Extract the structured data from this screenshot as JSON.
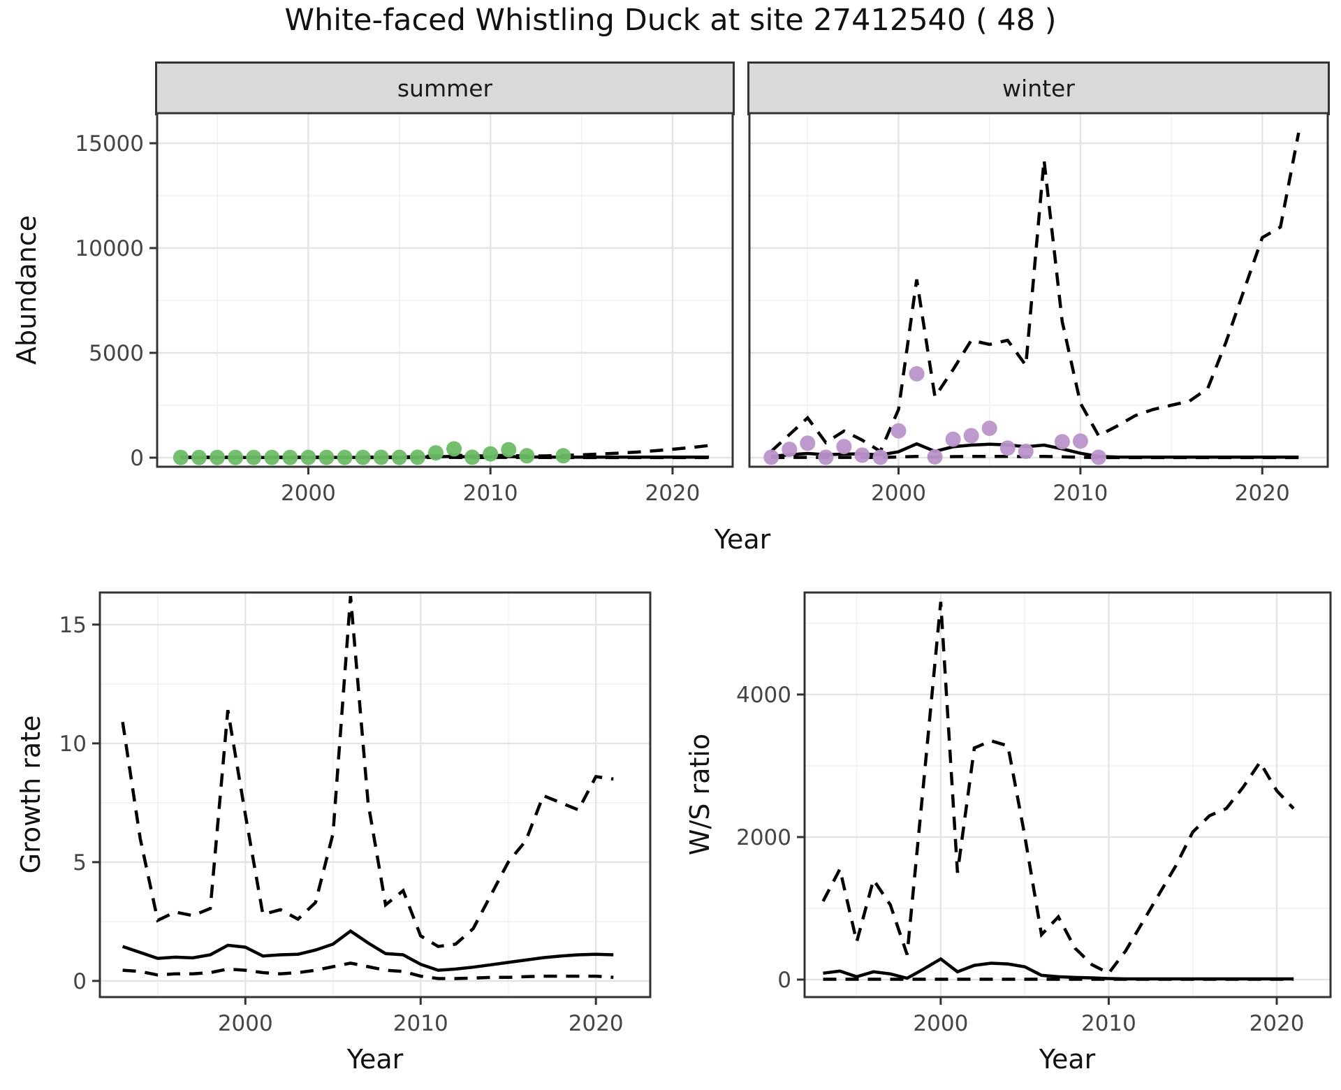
{
  "title": "White-faced Whistling Duck at site 27412540 ( 48 )",
  "colors": {
    "summer_points": "#6abd63",
    "winter_points": "#bb93cb",
    "line": "#000000",
    "strip_background": "#d9d9d9",
    "panel_border": "#333333",
    "grid_major": "#e4e4e4",
    "grid_minor": "#f2f2f2",
    "tick_text": "#444444"
  },
  "top_figure": {
    "ylabel": "Abundance",
    "xlabel": "Year",
    "facets": [
      "summer",
      "winter"
    ]
  },
  "bottom_left": {
    "ylabel": "Growth rate",
    "xlabel": "Year"
  },
  "bottom_right": {
    "ylabel": "W/S ratio",
    "xlabel": "Year"
  },
  "chart_data": [
    {
      "id": "abundance-summer",
      "type": "line",
      "title": "summer",
      "xlabel": "Year",
      "ylabel": "Abundance",
      "xlim": [
        1991.7,
        2023.3
      ],
      "ylim": [
        -433,
        16433
      ],
      "xticks": [
        2000,
        2010,
        2020
      ],
      "xticks_minor": [
        1995,
        2005,
        2015
      ],
      "yticks": [
        0,
        5000,
        10000,
        15000
      ],
      "yticks_minor": [
        2500,
        7500,
        12500
      ],
      "legend_position": "none",
      "grid": true,
      "series": [
        {
          "name": "upper-ci",
          "style": "dashed",
          "color": "#000000",
          "x": [
            1993,
            1994,
            1995,
            1996,
            1997,
            1998,
            1999,
            2000,
            2001,
            2002,
            2003,
            2004,
            2005,
            2006,
            2007,
            2008,
            2009,
            2010,
            2011,
            2012,
            2013,
            2014,
            2015,
            2016,
            2017,
            2018,
            2019,
            2020,
            2021,
            2022
          ],
          "y": [
            20,
            20,
            20,
            20,
            20,
            20,
            20,
            25,
            25,
            25,
            30,
            30,
            35,
            45,
            90,
            130,
            75,
            95,
            115,
            75,
            85,
            105,
            135,
            175,
            215,
            265,
            330,
            400,
            480,
            580
          ]
        },
        {
          "name": "lower-ci",
          "style": "dashed",
          "color": "#000000",
          "x": [
            1993,
            1994,
            1995,
            1996,
            1997,
            1998,
            1999,
            2000,
            2001,
            2002,
            2003,
            2004,
            2005,
            2006,
            2007,
            2008,
            2009,
            2010,
            2011,
            2012,
            2013,
            2014,
            2015,
            2016,
            2017,
            2018,
            2019,
            2020,
            2021,
            2022
          ],
          "y": [
            3,
            3,
            3,
            3,
            3,
            3,
            3,
            4,
            4,
            4,
            4,
            5,
            5,
            5,
            10,
            15,
            8,
            10,
            12,
            8,
            6,
            5,
            5,
            5,
            5,
            5,
            5,
            5,
            5,
            5
          ]
        },
        {
          "name": "modelled-estimate",
          "style": "solid",
          "color": "#000000",
          "x": [
            1993,
            1994,
            1995,
            1996,
            1997,
            1998,
            1999,
            2000,
            2001,
            2002,
            2003,
            2004,
            2005,
            2006,
            2007,
            2008,
            2009,
            2010,
            2011,
            2012,
            2013,
            2014,
            2015,
            2016,
            2017,
            2018,
            2019,
            2020,
            2021,
            2022
          ],
          "y": [
            10,
            10,
            10,
            10,
            10,
            10,
            10,
            12,
            12,
            12,
            12,
            15,
            15,
            20,
            45,
            60,
            35,
            45,
            55,
            35,
            28,
            25,
            25,
            25,
            25,
            25,
            25,
            25,
            25,
            25
          ]
        },
        {
          "name": "observed-counts",
          "style": "points",
          "color": "#6abd63",
          "x": [
            1993,
            1994,
            1995,
            1996,
            1997,
            1998,
            1999,
            2000,
            2001,
            2002,
            2003,
            2004,
            2005,
            2006,
            2007,
            2008,
            2009,
            2010,
            2011,
            2012,
            2014
          ],
          "y": [
            10,
            10,
            10,
            10,
            10,
            10,
            10,
            12,
            12,
            12,
            12,
            15,
            15,
            20,
            230,
            420,
            20,
            180,
            380,
            90,
            90
          ]
        }
      ]
    },
    {
      "id": "abundance-winter",
      "type": "line",
      "title": "winter",
      "xlabel": "Year",
      "ylabel": "Abundance",
      "xlim": [
        1991.8,
        2023.6
      ],
      "ylim": [
        -433,
        16433
      ],
      "xticks": [
        2000,
        2010,
        2020
      ],
      "xticks_minor": [
        1995,
        2005,
        2015
      ],
      "yticks": [
        0,
        5000,
        10000,
        15000
      ],
      "yticks_minor": [
        2500,
        7500,
        12500
      ],
      "legend_position": "none",
      "grid": true,
      "series": [
        {
          "name": "upper-ci",
          "style": "dashed",
          "color": "#000000",
          "x": [
            1993,
            1994,
            1995,
            1996,
            1997,
            1998,
            1999,
            2000,
            2001,
            2002,
            2003,
            2004,
            2005,
            2006,
            2007,
            2008,
            2009,
            2010,
            2011,
            2012,
            2013,
            2014,
            2015,
            2016,
            2017,
            2018,
            2019,
            2020,
            2021,
            2022
          ],
          "y": [
            300,
            1100,
            1900,
            720,
            1270,
            840,
            300,
            2300,
            8500,
            2900,
            4200,
            5600,
            5400,
            5600,
            4400,
            14200,
            6500,
            2600,
            1050,
            1500,
            2000,
            2300,
            2500,
            2700,
            3300,
            5500,
            8000,
            10500,
            11000,
            15500
          ]
        },
        {
          "name": "lower-ci",
          "style": "dashed",
          "color": "#000000",
          "x": [
            1993,
            1994,
            1995,
            1996,
            1997,
            1998,
            1999,
            2000,
            2001,
            2002,
            2003,
            2004,
            2005,
            2006,
            2007,
            2008,
            2009,
            2010,
            2011,
            2012,
            2013,
            2014,
            2015,
            2016,
            2017,
            2018,
            2019,
            2020,
            2021,
            2022
          ],
          "y": [
            5,
            10,
            15,
            10,
            15,
            15,
            10,
            30,
            60,
            30,
            50,
            60,
            60,
            60,
            50,
            60,
            40,
            20,
            5,
            5,
            5,
            5,
            5,
            5,
            5,
            5,
            5,
            5,
            5,
            5
          ]
        },
        {
          "name": "modelled-estimate",
          "style": "solid",
          "color": "#000000",
          "x": [
            1993,
            1994,
            1995,
            1996,
            1997,
            1998,
            1999,
            2000,
            2001,
            2002,
            2003,
            2004,
            2005,
            2006,
            2007,
            2008,
            2009,
            2010,
            2011,
            2012,
            2013,
            2014,
            2015,
            2016,
            2017,
            2018,
            2019,
            2020,
            2021,
            2022
          ],
          "y": [
            60,
            140,
            200,
            140,
            170,
            180,
            130,
            280,
            660,
            300,
            520,
            600,
            640,
            610,
            520,
            600,
            420,
            210,
            60,
            30,
            25,
            25,
            25,
            25,
            25,
            25,
            25,
            25,
            25,
            25
          ]
        },
        {
          "name": "observed-counts",
          "style": "points",
          "color": "#bb93cb",
          "x": [
            1993,
            1994,
            1995,
            1996,
            1997,
            1998,
            1999,
            2000,
            2001,
            2002,
            2003,
            2004,
            2005,
            2006,
            2007,
            2009,
            2010,
            2011
          ],
          "y": [
            20,
            400,
            690,
            20,
            530,
            120,
            20,
            1280,
            4000,
            40,
            880,
            1050,
            1400,
            460,
            300,
            760,
            790,
            20
          ]
        }
      ]
    },
    {
      "id": "growth-rate",
      "type": "line",
      "title": "Growth rate",
      "xlabel": "Year",
      "ylabel": "Growth rate",
      "xlim": [
        1991.7,
        2023.1
      ],
      "ylim": [
        -0.68,
        16.35
      ],
      "xticks": [
        2000,
        2010,
        2020
      ],
      "xticks_minor": [
        1995,
        2005,
        2015
      ],
      "yticks": [
        0,
        5,
        10,
        15
      ],
      "yticks_minor": [
        2.5,
        7.5,
        12.5
      ],
      "legend_position": "none",
      "grid": true,
      "series": [
        {
          "name": "upper-ci",
          "style": "dashed",
          "color": "#000000",
          "x": [
            1993,
            1994,
            1995,
            1996,
            1997,
            1998,
            1999,
            2000,
            2001,
            2002,
            2003,
            2004,
            2005,
            2006,
            2007,
            2008,
            2009,
            2010,
            2011,
            2012,
            2013,
            2014,
            2015,
            2016,
            2017,
            2018,
            2019,
            2020,
            2021
          ],
          "y": [
            10.9,
            6.0,
            2.55,
            2.9,
            2.75,
            3.05,
            11.4,
            7.0,
            2.8,
            3.0,
            2.6,
            3.3,
            6.2,
            16.2,
            7.5,
            3.2,
            3.8,
            1.9,
            1.45,
            1.55,
            2.2,
            3.6,
            5.0,
            5.9,
            7.8,
            7.5,
            7.2,
            8.6,
            8.5
          ]
        },
        {
          "name": "lower-ci",
          "style": "dashed",
          "color": "#000000",
          "x": [
            1993,
            1994,
            1995,
            1996,
            1997,
            1998,
            1999,
            2000,
            2001,
            2002,
            2003,
            2004,
            2005,
            2006,
            2007,
            2008,
            2009,
            2010,
            2011,
            2012,
            2013,
            2014,
            2015,
            2016,
            2017,
            2018,
            2019,
            2020,
            2021
          ],
          "y": [
            0.45,
            0.4,
            0.25,
            0.3,
            0.3,
            0.35,
            0.5,
            0.45,
            0.35,
            0.3,
            0.35,
            0.45,
            0.6,
            0.75,
            0.6,
            0.45,
            0.4,
            0.2,
            0.1,
            0.1,
            0.12,
            0.15,
            0.15,
            0.18,
            0.2,
            0.2,
            0.2,
            0.2,
            0.15
          ]
        },
        {
          "name": "growth-rate-estimate",
          "style": "solid",
          "color": "#000000",
          "x": [
            1993,
            1994,
            1995,
            1996,
            1997,
            1998,
            1999,
            2000,
            2001,
            2002,
            2003,
            2004,
            2005,
            2006,
            2007,
            2008,
            2009,
            2010,
            2011,
            2012,
            2013,
            2014,
            2015,
            2016,
            2017,
            2018,
            2019,
            2020,
            2021
          ],
          "y": [
            1.45,
            1.2,
            0.95,
            1.0,
            0.97,
            1.1,
            1.5,
            1.42,
            1.05,
            1.1,
            1.12,
            1.3,
            1.55,
            2.1,
            1.6,
            1.15,
            1.1,
            0.7,
            0.45,
            0.5,
            0.58,
            0.68,
            0.78,
            0.88,
            0.98,
            1.05,
            1.1,
            1.12,
            1.1
          ]
        }
      ]
    },
    {
      "id": "ws-ratio",
      "type": "line",
      "title": "W/S ratio",
      "xlabel": "Year",
      "ylabel": "W/S ratio",
      "xlim": [
        1991.9,
        2023.2
      ],
      "ylim": [
        -245,
        5431
      ],
      "xticks": [
        2000,
        2010,
        2020
      ],
      "xticks_minor": [
        1995,
        2005,
        2015
      ],
      "yticks": [
        0,
        2000,
        4000
      ],
      "yticks_minor": [
        1000,
        3000,
        5000
      ],
      "legend_position": "none",
      "grid": true,
      "series": [
        {
          "name": "upper-ci",
          "style": "dashed",
          "color": "#000000",
          "x": [
            1993,
            1994,
            1995,
            1996,
            1997,
            1998,
            1999,
            2000,
            2001,
            2002,
            2003,
            2004,
            2005,
            2006,
            2007,
            2008,
            2009,
            2010,
            2011,
            2012,
            2013,
            2014,
            2015,
            2016,
            2017,
            2018,
            2019,
            2020,
            2021
          ],
          "y": [
            1100,
            1550,
            530,
            1400,
            1050,
            350,
            2800,
            5300,
            1500,
            3250,
            3350,
            3280,
            2020,
            630,
            880,
            440,
            210,
            90,
            400,
            800,
            1200,
            1600,
            2070,
            2300,
            2400,
            2700,
            3050,
            2650,
            2400
          ]
        },
        {
          "name": "lower-ci",
          "style": "dashed",
          "color": "#000000",
          "x": [
            1993,
            1994,
            1995,
            1996,
            1997,
            1998,
            1999,
            2000,
            2001,
            2002,
            2003,
            2004,
            2005,
            2006,
            2007,
            2008,
            2009,
            2010,
            2011,
            2012,
            2013,
            2014,
            2015,
            2016,
            2017,
            2018,
            2019,
            2020,
            2021
          ],
          "y": [
            5,
            5,
            5,
            5,
            5,
            5,
            5,
            5,
            5,
            5,
            5,
            5,
            5,
            5,
            5,
            5,
            5,
            5,
            5,
            5,
            5,
            5,
            5,
            5,
            5,
            5,
            5,
            5,
            5
          ]
        },
        {
          "name": "ws-ratio-estimate",
          "style": "solid",
          "color": "#000000",
          "x": [
            1993,
            1994,
            1995,
            1996,
            1997,
            1998,
            1999,
            2000,
            2001,
            2002,
            2003,
            2004,
            2005,
            2006,
            2007,
            2008,
            2009,
            2010,
            2011,
            2012,
            2013,
            2014,
            2015,
            2016,
            2017,
            2018,
            2019,
            2020,
            2021
          ],
          "y": [
            90,
            120,
            40,
            110,
            80,
            20,
            150,
            290,
            110,
            200,
            230,
            220,
            180,
            60,
            40,
            30,
            25,
            15,
            10,
            10,
            10,
            10,
            10,
            10,
            10,
            10,
            10,
            10,
            10
          ]
        }
      ]
    }
  ]
}
